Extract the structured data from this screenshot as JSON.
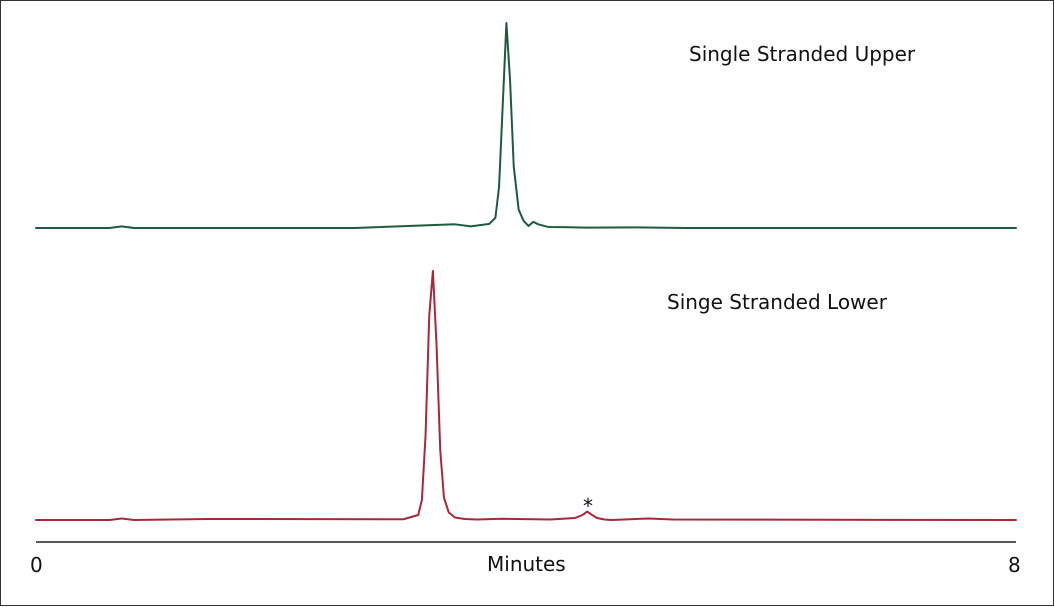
{
  "chart_data": [
    {
      "type": "line",
      "title": "",
      "xlabel": "Minutes",
      "ylabel": "",
      "xlim": [
        0,
        8
      ],
      "ylim": [
        0,
        1
      ],
      "grid": false,
      "annotation": "Single Stranded Upper",
      "series": [
        {
          "color": "#1f5a3f",
          "x": [
            0,
            0.6,
            0.7,
            0.8,
            2.6,
            3.42,
            3.55,
            3.7,
            3.75,
            3.78,
            3.81,
            3.84,
            3.87,
            3.9,
            3.94,
            3.98,
            4.02,
            4.06,
            4.1,
            4.18,
            4.3,
            4.5,
            4.9,
            5.3,
            8
          ],
          "y": [
            0,
            0,
            0.008,
            0,
            0,
            0.018,
            0.008,
            0.02,
            0.05,
            0.2,
            0.6,
            1.0,
            0.72,
            0.3,
            0.09,
            0.035,
            0.01,
            0.03,
            0.018,
            0.005,
            0.004,
            0.002,
            0.003,
            0,
            0
          ]
        }
      ]
    },
    {
      "type": "line",
      "title": "",
      "xlabel": "Minutes",
      "ylabel": "",
      "xlim": [
        0,
        8
      ],
      "ylim": [
        0,
        1
      ],
      "grid": false,
      "annotation": "Singe Stranded Lower",
      "marker_label": "*",
      "series": [
        {
          "color": "#a8283a",
          "x": [
            0,
            0.6,
            0.7,
            0.8,
            1.4,
            3.0,
            3.12,
            3.15,
            3.18,
            3.21,
            3.24,
            3.27,
            3.3,
            3.33,
            3.37,
            3.42,
            3.5,
            3.6,
            3.8,
            4.2,
            4.4,
            4.46,
            4.5,
            4.54,
            4.58,
            4.64,
            4.7,
            5.0,
            5.2,
            8
          ],
          "y": [
            0,
            0,
            0.006,
            0,
            0.004,
            0.003,
            0.02,
            0.08,
            0.34,
            0.82,
            1.0,
            0.7,
            0.28,
            0.09,
            0.03,
            0.01,
            0.004,
            0.002,
            0.005,
            0.002,
            0.008,
            0.02,
            0.034,
            0.02,
            0.008,
            0.002,
            0.0,
            0.006,
            0.002,
            0
          ]
        }
      ]
    }
  ],
  "xaxis": {
    "label": "Minutes",
    "min_label": "0",
    "max_label": "8"
  }
}
